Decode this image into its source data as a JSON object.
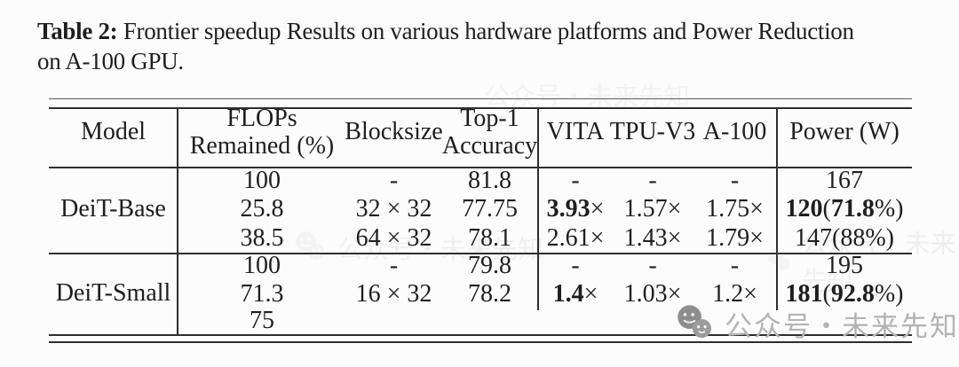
{
  "caption": {
    "label": "Table 2:",
    "line1": "Frontier speedup Results on various hardware platforms and Power Reduction",
    "line2": "on A-100 GPU."
  },
  "table": {
    "headers": {
      "model": "Model",
      "flops_line1": "FLOPs",
      "flops_line2": "Remained (%)",
      "blocksize": "Blocksize",
      "top1_line1": "Top-1",
      "top1_line2": "Accuracy",
      "vita": "VITA",
      "tpu": "TPU-V3",
      "a100": "A-100",
      "power": "Power (W)"
    },
    "groups": [
      {
        "model": "DeiT-Base",
        "rows": [
          [
            "100",
            "-",
            "81.8",
            "-",
            "-",
            "-",
            "167"
          ],
          [
            "25.8",
            "32 × 32",
            "77.75",
            "**3.93**×",
            "1.57×",
            "1.75×",
            "**120**(**71.8**%)"
          ],
          [
            "38.5",
            "64 × 32",
            "78.1",
            "2.61×",
            "1.43×",
            "1.79×",
            "147(88%)"
          ]
        ]
      },
      {
        "model": "DeiT-Small",
        "rows": [
          [
            "100",
            "-",
            "79.8",
            "-",
            "-",
            "-",
            "195"
          ],
          [
            "71.3",
            "16 × 32",
            "78.2",
            "**1.4**×",
            "1.03×",
            "1.2×",
            "**181**(**92.8**%)"
          ],
          [
            "75",
            "",
            "",
            "",
            "",
            "",
            ""
          ]
        ]
      }
    ]
  },
  "watermark": {
    "icon": "wechat-official-account-icon",
    "text": "公众号・未来先知"
  }
}
